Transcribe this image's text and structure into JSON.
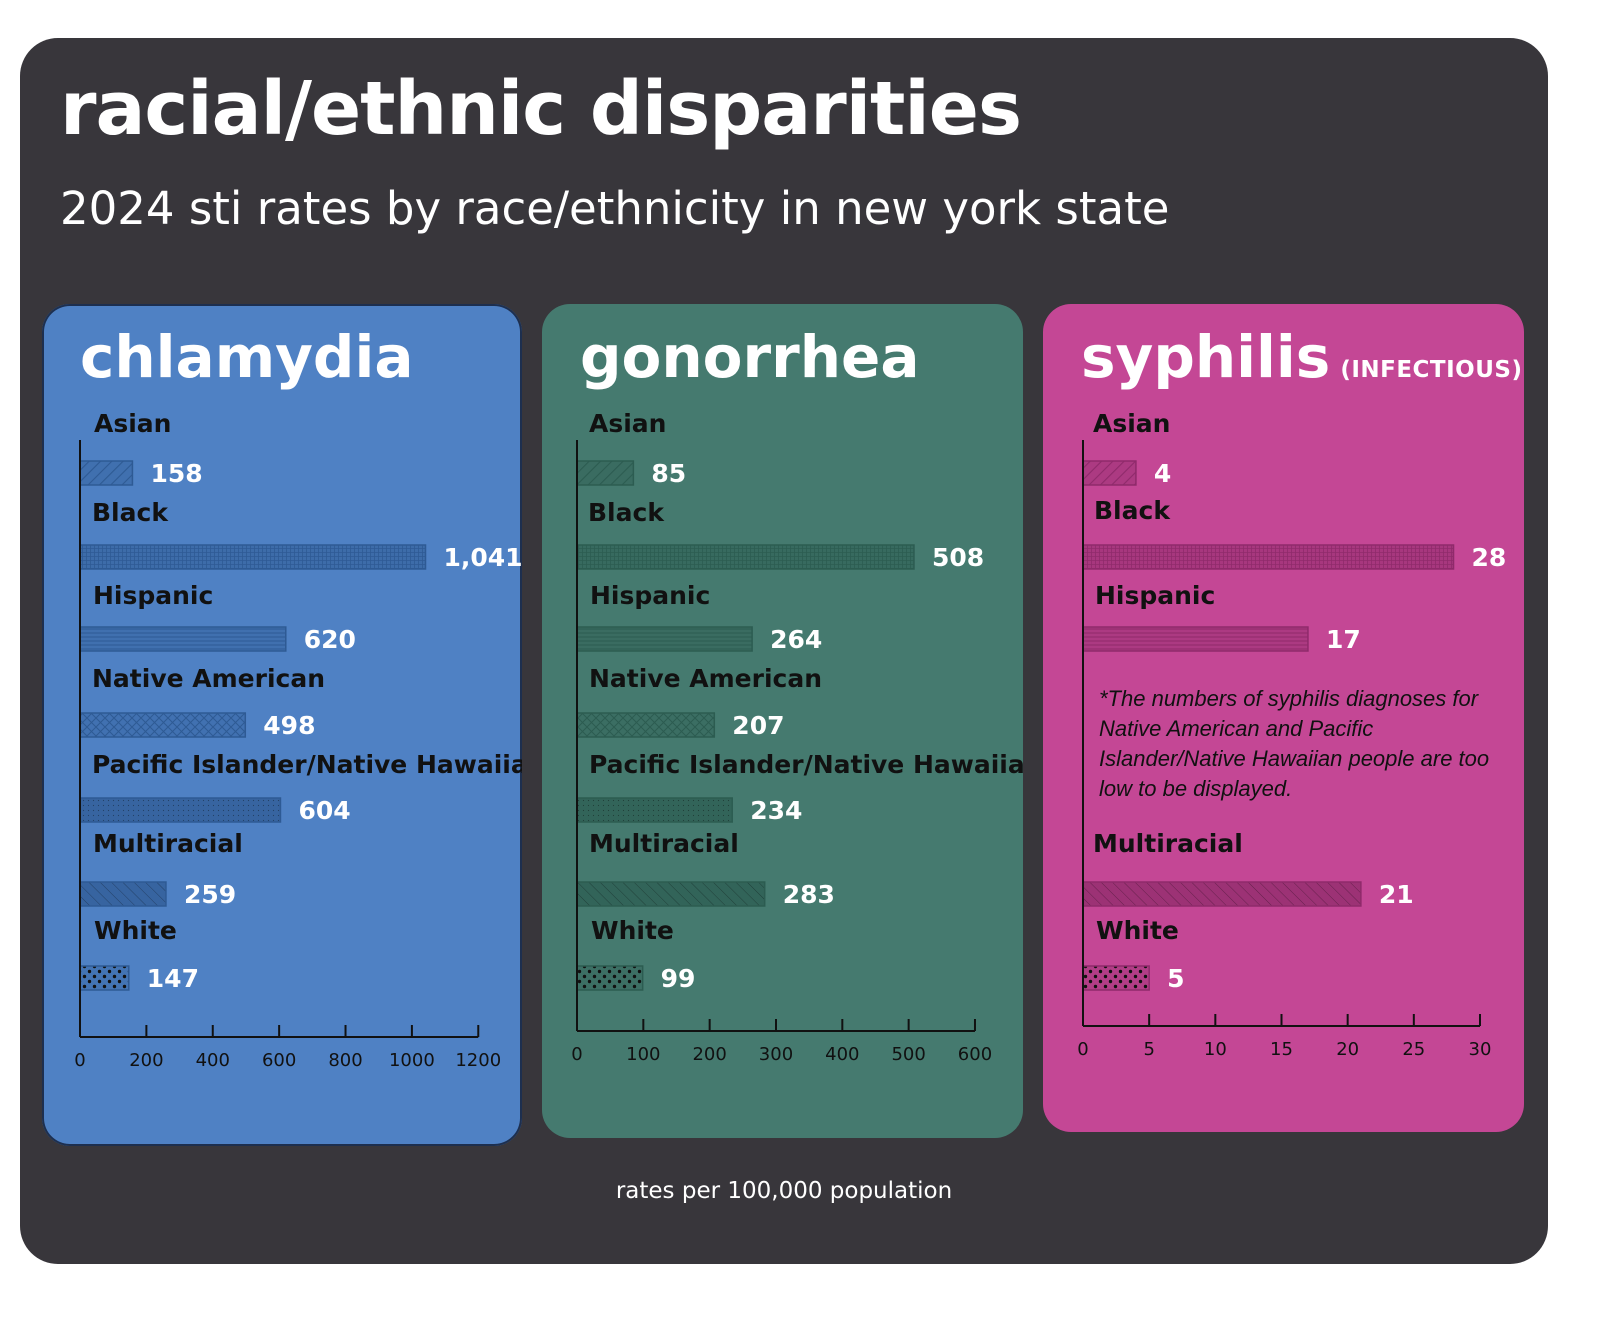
{
  "header": {
    "title": "racial/ethnic disparities",
    "subtitle": "2024 sti rates by race/ethnicity in new york state"
  },
  "footer": {
    "units_note": "rates per 100,000 population"
  },
  "colors": {
    "frame_background": "#38363b",
    "chlamydia_panel": "#4f81c4",
    "chlamydia_bar": "#2e5a94",
    "gonorrhea_panel": "#457a6f",
    "gonorrhea_bar": "#2c5c51",
    "syphilis_panel": "#c44795",
    "syphilis_bar": "#8f2a6b"
  },
  "chart_data": [
    {
      "type": "bar",
      "orientation": "horizontal",
      "title": "chlamydia",
      "categories": [
        "Asian",
        "Black",
        "Hispanic",
        "Native American",
        "Pacific Islander/Native Hawaiian",
        "Multiracial",
        "White"
      ],
      "values": [
        158,
        1041,
        620,
        498,
        604,
        259,
        147
      ],
      "value_labels": [
        "158",
        "1,041",
        "620",
        "498",
        "604",
        "259",
        "147"
      ],
      "xlim": [
        0,
        1200
      ],
      "xticks": [
        0,
        200,
        400,
        600,
        800,
        1000,
        1200
      ],
      "grid": false
    },
    {
      "type": "bar",
      "orientation": "horizontal",
      "title": "gonorrhea",
      "categories": [
        "Asian",
        "Black",
        "Hispanic",
        "Native American",
        "Pacific Islander/Native Hawaiian",
        "Multiracial",
        "White"
      ],
      "values": [
        85,
        508,
        264,
        207,
        234,
        283,
        99
      ],
      "value_labels": [
        "85",
        "508",
        "264",
        "207",
        "234",
        "283",
        "99"
      ],
      "xlim": [
        0,
        600
      ],
      "xticks": [
        0,
        100,
        200,
        300,
        400,
        500,
        600
      ],
      "grid": false
    },
    {
      "type": "bar",
      "orientation": "horizontal",
      "title": "syphilis",
      "qualifier": "(INFECTIOUS)",
      "categories": [
        "Asian",
        "Black",
        "Hispanic",
        "Multiracial",
        "White"
      ],
      "values": [
        4,
        28,
        17,
        21,
        5
      ],
      "value_labels": [
        "4",
        "28",
        "17",
        "21",
        "5"
      ],
      "xlim": [
        0,
        30
      ],
      "xticks": [
        0,
        5,
        10,
        15,
        20,
        25,
        30
      ],
      "grid": false,
      "footnote": "*The numbers of syphilis diagnoses for Native American and Pacific Islander/Native Hawaiian people are too low to be displayed."
    }
  ]
}
